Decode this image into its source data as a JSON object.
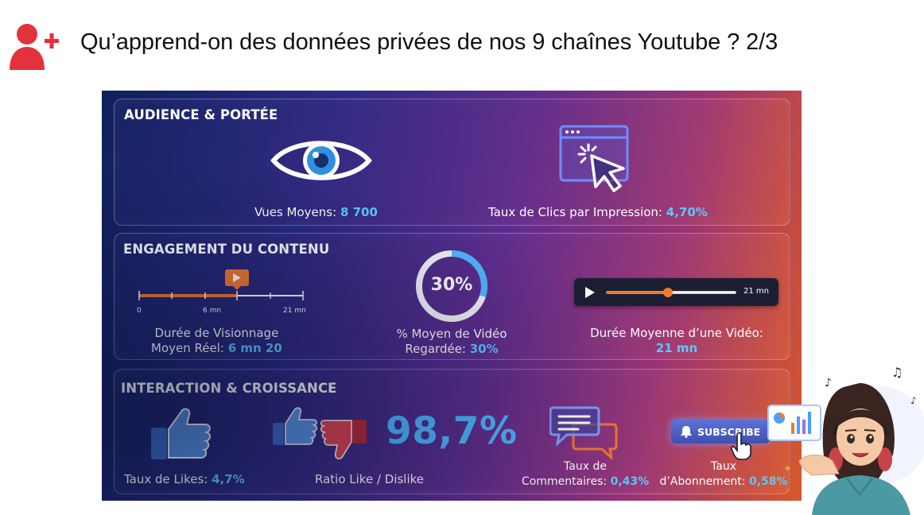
{
  "header": {
    "title": "Qu’apprend-on des données privées de nos 9 chaînes Youtube ? 2/3",
    "icon": "add-user-icon",
    "accent_color": "#e2323c"
  },
  "infographic": {
    "sections": {
      "audience": {
        "title": "AUDIENCE & PORTÉE",
        "views_label": "Vues Moyens: ",
        "views_value": "8 700",
        "ctr_label": "Taux de Clics par Impression: ",
        "ctr_value": "4,70%"
      },
      "engagement": {
        "title": "ENGAGEMENT DU CONTENU",
        "timeline_ticks": [
          "0",
          "6 mn",
          "21 mn"
        ],
        "watch_time_label_line1": "Durée de Visionnage",
        "watch_time_label_line2": "Moyen Réel: ",
        "watch_time_value": "6 mn 20",
        "progress_ring_value": "30%",
        "progress_ring_fraction": 0.3,
        "percent_watched_line1": "% Moyen de Vidéo",
        "percent_watched_line2": "Regardée: ",
        "percent_watched_value": "30%",
        "player_time": "21 mn",
        "avg_duration_line1": "Durée Moyenne d’une Vidéo:",
        "avg_duration_value": "21 mn"
      },
      "interaction": {
        "title": "INTERACTION & CROISSANCE",
        "likes_label": "Taux de Likes: ",
        "likes_value": "4,7%",
        "ratio_value": "98,7%",
        "ratio_label": "Ratio Like / Dislike",
        "comments_line1": "Taux de",
        "comments_line2": "Commentaires: ",
        "comments_value": "0,43%",
        "subscribe_button": "SUBSCRIBE",
        "subs_line1": "Taux",
        "subs_line2": "d’Abonnement: ",
        "subs_value": "0,58%"
      }
    },
    "colors": {
      "highlight": "#5cc8ff",
      "ratio": "#4fb7ff",
      "like_blue": "#4a8be0",
      "dislike_red": "#e0454f",
      "timeline_orange": "#f07a2e"
    }
  },
  "avatar": {
    "description_icon": "cartoon-presenter-avatar"
  }
}
